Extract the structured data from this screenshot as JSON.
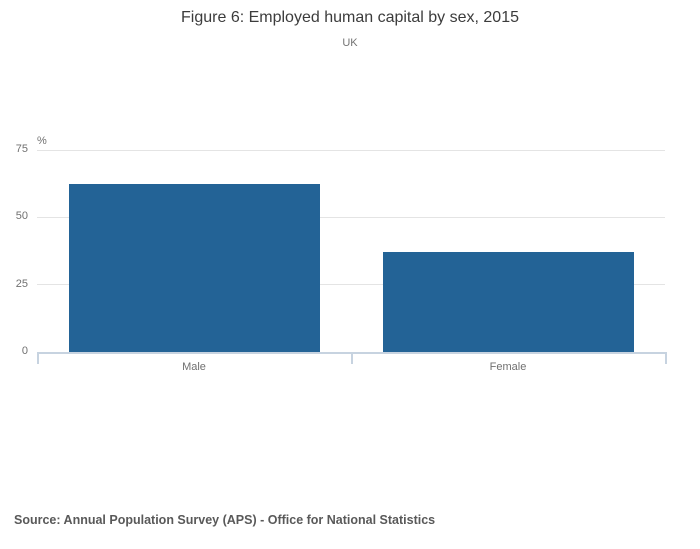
{
  "chart_data": {
    "type": "bar",
    "title": "Figure 6: Employed human capital by sex, 2015",
    "subtitle": "UK",
    "categories": [
      "Male",
      "Female"
    ],
    "values": [
      62.4,
      37.2
    ],
    "xlabel": "",
    "ylabel": "%",
    "ylim": [
      0,
      75
    ],
    "yticks": [
      0,
      25,
      50,
      75
    ],
    "grid": true,
    "legend": false,
    "source": "Source: Annual Population Survey (APS) - Office for National Statistics"
  },
  "colors": {
    "bar": "#236396",
    "axis_line": "#c7d3e0",
    "gridline": "#e4e4e4",
    "title_text": "#3c3c3c",
    "muted_text": "#707070",
    "source_text": "#595959"
  }
}
